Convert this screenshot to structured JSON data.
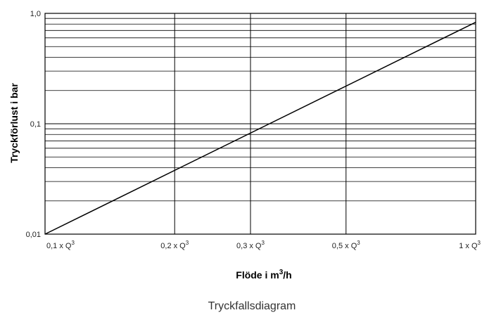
{
  "chart_data": {
    "type": "line",
    "caption": "Tryckfallsdiagram",
    "xlabel": {
      "prefix": "Flöde i m",
      "sup": "3",
      "suffix": "/h"
    },
    "ylabel": "Tryckförlust i bar",
    "x_scale": "log",
    "y_scale": "log",
    "xlim": [
      0.1,
      1
    ],
    "ylim": [
      0.01,
      1
    ],
    "grid": true,
    "x_ticks": [
      {
        "value": 0.1,
        "label": "0,1 x Q",
        "sup": "3"
      },
      {
        "value": 0.2,
        "label": "0,2 x Q",
        "sup": "3"
      },
      {
        "value": 0.3,
        "label": "0,3 x Q",
        "sup": "3"
      },
      {
        "value": 0.5,
        "label": "0,5 x Q",
        "sup": "3"
      },
      {
        "value": 1,
        "label": "1 x Q",
        "sup": "3"
      }
    ],
    "y_ticks": [
      {
        "value": 0.01,
        "label": "0,01"
      },
      {
        "value": 0.1,
        "label": "0,1"
      },
      {
        "value": 1,
        "label": "1,0"
      }
    ],
    "y_minor_gridlines": [
      0.02,
      0.03,
      0.04,
      0.05,
      0.06,
      0.07,
      0.08,
      0.09,
      0.2,
      0.3,
      0.4,
      0.5,
      0.6,
      0.7,
      0.8,
      0.9
    ],
    "x_gridlines": [
      0.2,
      0.3,
      0.5
    ],
    "series": [
      {
        "x": [
          0.1,
          1
        ],
        "y": [
          0.01,
          0.83
        ]
      }
    ],
    "colors": {
      "line": "#000000",
      "grid": "#000000",
      "text": "#222222",
      "caption": "#333333"
    }
  }
}
